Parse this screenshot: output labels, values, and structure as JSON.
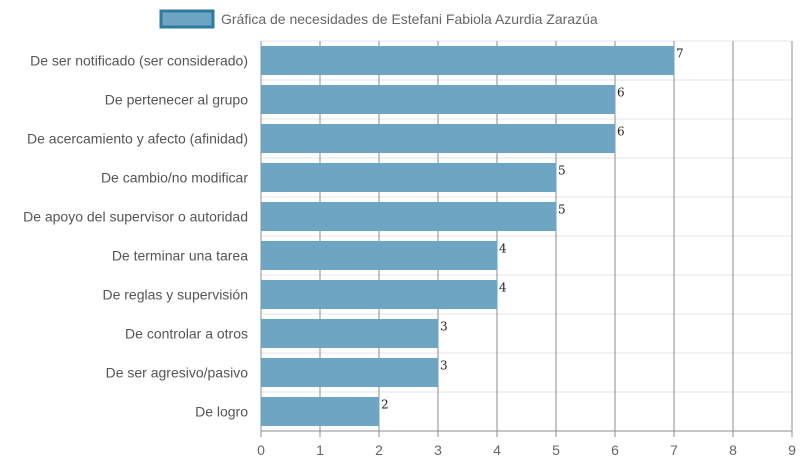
{
  "chart_data": {
    "type": "bar",
    "orientation": "horizontal",
    "title": "",
    "xlabel": "",
    "ylabel": "",
    "categories": [
      "De ser notificado (ser considerado)",
      "De pertenecer al grupo",
      "De acercamiento y afecto (afinidad)",
      "De cambio/no modificar",
      "De apoyo del supervisor o autoridad",
      "De terminar una tarea",
      "De reglas y supervisión",
      "De controlar a otros",
      "De ser agresivo/pasivo",
      "De logro"
    ],
    "series": [
      {
        "name": "Gráfica de necesidades de Estefani Fabiola Azurdia Zarazúa",
        "values": [
          7,
          6,
          6,
          5,
          5,
          4,
          4,
          3,
          3,
          2
        ],
        "color": "#6ea5c3",
        "border_color": "#2f7aa0"
      }
    ],
    "xlim": [
      0,
      9
    ],
    "x_ticks": [
      "0",
      "1",
      "2",
      "3",
      "4",
      "5",
      "6",
      "7",
      "8",
      "9"
    ],
    "grid": true,
    "legend_position": "top",
    "data_labels": true
  }
}
